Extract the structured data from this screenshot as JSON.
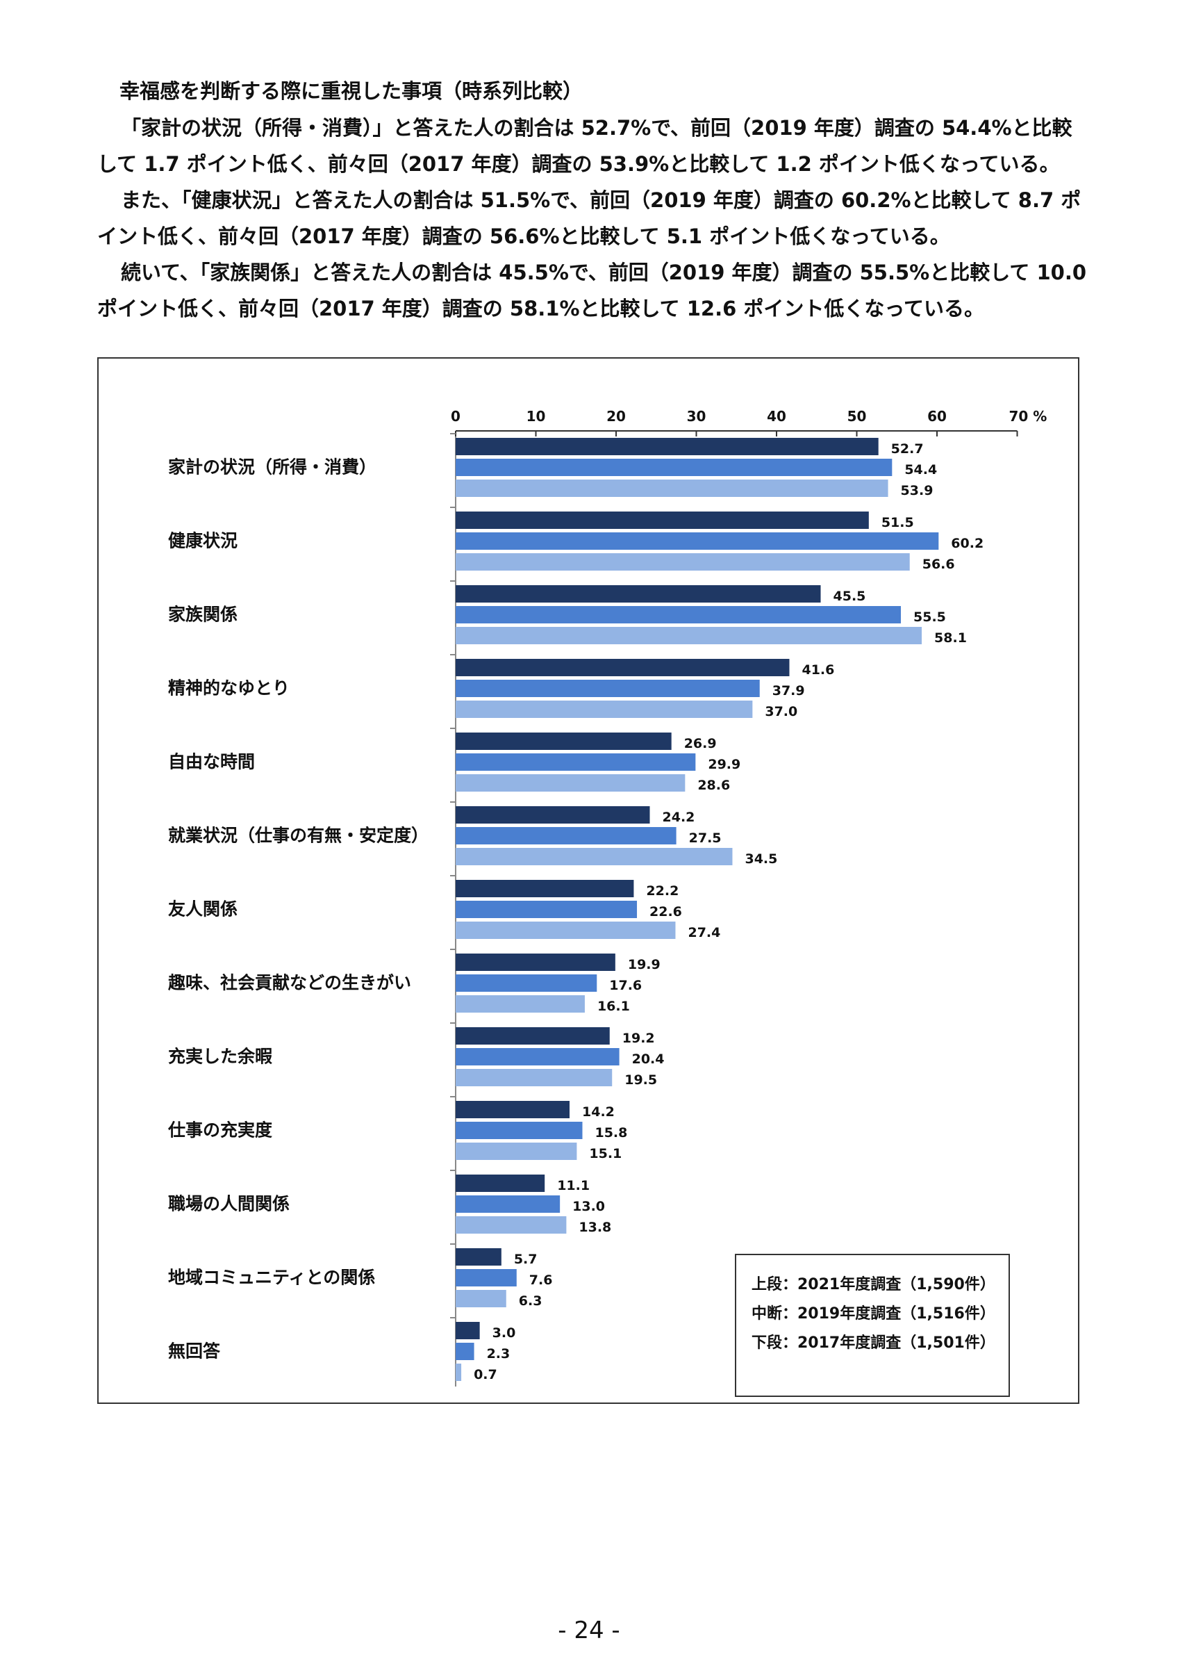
{
  "heading": "幸福感を判断する際に重視した事項（時系列比較）",
  "paragraphs": [
    "「家計の状況（所得・消費）」と答えた人の割合は 52.7%で、前回（2019 年度）調査の 54.4%と比較して 1.7 ポイント低く、前々回（2017 年度）調査の 53.9%と比較して 1.2 ポイント低くなっている。",
    "また、「健康状況」と答えた人の割合は 51.5%で、前回（2019 年度）調査の 60.2%と比較して 8.7 ポイント低く、前々回（2017 年度）調査の 56.6%と比較して 5.1 ポイント低くなっている。",
    "続いて、「家族関係」と答えた人の割合は 45.5%で、前回（2019 年度）調査の 55.5%と比較して 10.0 ポイント低く、前々回（2017 年度）調査の 58.1%と比較して 12.6 ポイント低くなっている。"
  ],
  "legend": [
    "上段：2021年度調査（1,590件）",
    "中断：2019年度調査（1,516件）",
    "下段：2017年度調査（1,501件）"
  ],
  "page_number": "- 24 -",
  "colors": {
    "series_2021": "#1f3864",
    "series_2019": "#4a7fd0",
    "series_2017": "#93b4e4"
  },
  "chart_data": {
    "type": "bar",
    "orientation": "horizontal",
    "xlim": [
      0,
      70
    ],
    "ticks": [
      0,
      10,
      20,
      30,
      40,
      50,
      60,
      70
    ],
    "tick_labels": [
      "0",
      "10",
      "20",
      "30",
      "40",
      "50",
      "60",
      "70 %"
    ],
    "categories": [
      "家計の状況（所得・消費）",
      "健康状況",
      "家族関係",
      "精神的なゆとり",
      "自由な時間",
      "就業状況（仕事の有無・安定度）",
      "友人関係",
      "趣味、社会貢献などの生きがい",
      "充実した余暇",
      "仕事の充実度",
      "職場の人間関係",
      "地域コミュニティとの関係",
      "無回答"
    ],
    "series": [
      {
        "values": [
          52.7,
          51.5,
          45.5,
          41.6,
          26.9,
          24.2,
          22.2,
          19.9,
          19.2,
          14.2,
          11.1,
          5.7,
          3.0
        ],
        "labels": [
          "52.7",
          "51.5",
          "45.5",
          "41.6",
          "26.9",
          "24.2",
          "22.2",
          "19.9",
          "19.2",
          "14.2",
          "11.1",
          "5.7",
          "3.0"
        ]
      },
      {
        "values": [
          54.4,
          60.2,
          55.5,
          37.9,
          29.9,
          27.5,
          22.6,
          17.6,
          20.4,
          15.8,
          13.0,
          7.6,
          2.3
        ],
        "labels": [
          "54.4",
          "60.2",
          "55.5",
          "37.9",
          "29.9",
          "27.5",
          "22.6",
          "17.6",
          "20.4",
          "15.8",
          "13.0",
          "7.6",
          "2.3"
        ]
      },
      {
        "values": [
          53.9,
          56.6,
          58.1,
          37.0,
          28.6,
          34.5,
          27.4,
          16.1,
          19.5,
          15.1,
          13.8,
          6.3,
          0.7
        ],
        "labels": [
          "53.9",
          "56.6",
          "58.1",
          "37.0",
          "28.6",
          "34.5",
          "27.4",
          "16.1",
          "19.5",
          "15.1",
          "13.8",
          "6.3",
          "0.7"
        ]
      }
    ]
  }
}
